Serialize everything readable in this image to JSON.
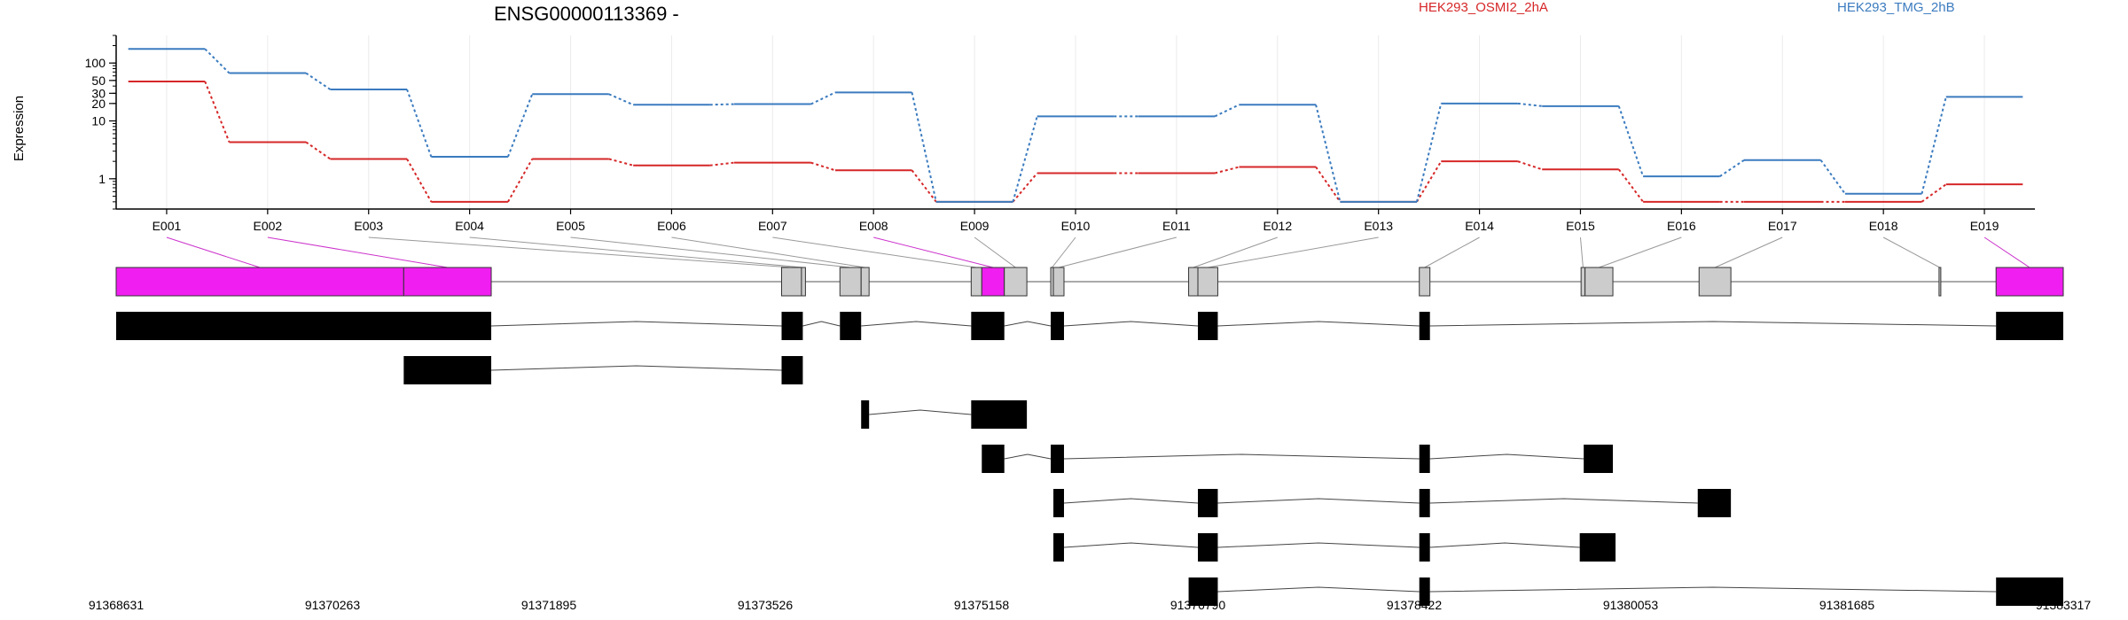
{
  "chart_data": {
    "type": "line",
    "title": "ENSG00000113369 -",
    "ylabel": "Expression",
    "yscale": "log",
    "ylim": [
      0.3,
      300
    ],
    "yticks": [
      1,
      10,
      20,
      30,
      50,
      100
    ],
    "categories": [
      "E001",
      "E002",
      "E003",
      "E004",
      "E005",
      "E006",
      "E007",
      "E008",
      "E009",
      "E010",
      "E011",
      "E012",
      "E013",
      "E014",
      "E015",
      "E016",
      "E017",
      "E018",
      "E019"
    ],
    "series": [
      {
        "name": "HEK293_OSMI2_2hA",
        "color": "#d62728",
        "values": [
          48,
          4.3,
          2.2,
          0.4,
          2.2,
          1.7,
          1.9,
          1.4,
          0.4,
          1.25,
          1.25,
          1.6,
          0.4,
          2.0,
          1.45,
          0.4,
          0.4,
          0.4,
          0.8
        ]
      },
      {
        "name": "HEK293_TMG_2hB",
        "color": "#3b7bbf",
        "values": [
          175,
          67,
          35,
          2.4,
          29,
          19,
          19.5,
          31,
          0.4,
          12,
          12,
          19,
          0.4,
          20,
          18,
          1.1,
          2.1,
          0.55,
          26
        ]
      }
    ],
    "genome_coords": [
      "91368631",
      "91370263",
      "91371895",
      "91373526",
      "91375158",
      "91376790",
      "91378422",
      "91380053",
      "91381685",
      "91383317"
    ],
    "genome_range": [
      91368631,
      91383317
    ],
    "exon_bins": [
      {
        "id": "E001",
        "start": 91368631,
        "end": 91370800,
        "highlight": true
      },
      {
        "id": "E002",
        "start": 91370800,
        "end": 91371460,
        "highlight": true
      },
      {
        "id": "E003",
        "start": 91373650,
        "end": 91373800,
        "highlight": false
      },
      {
        "id": "E004",
        "start": 91373800,
        "end": 91373830,
        "highlight": false
      },
      {
        "id": "E005",
        "start": 91374090,
        "end": 91374250,
        "highlight": false
      },
      {
        "id": "E006",
        "start": 91374250,
        "end": 91374310,
        "highlight": false
      },
      {
        "id": "E007",
        "start": 91375080,
        "end": 91375160,
        "highlight": false
      },
      {
        "id": "E008",
        "start": 91375160,
        "end": 91375330,
        "highlight": true
      },
      {
        "id": "E009",
        "start": 91375330,
        "end": 91375500,
        "highlight": false
      },
      {
        "id": "E010",
        "start": 91375680,
        "end": 91375700,
        "highlight": false
      },
      {
        "id": "E011",
        "start": 91375700,
        "end": 91375780,
        "highlight": false
      },
      {
        "id": "E012",
        "start": 91376720,
        "end": 91376790,
        "highlight": false
      },
      {
        "id": "E013",
        "start": 91376790,
        "end": 91376940,
        "highlight": false
      },
      {
        "id": "E014",
        "start": 91378460,
        "end": 91378540,
        "highlight": false
      },
      {
        "id": "E015",
        "start": 91379680,
        "end": 91379710,
        "highlight": false
      },
      {
        "id": "E016",
        "start": 91379710,
        "end": 91379920,
        "highlight": false
      },
      {
        "id": "E017",
        "start": 91380570,
        "end": 91380810,
        "highlight": false
      },
      {
        "id": "E018",
        "start": 91382380,
        "end": 91382390,
        "highlight": false
      },
      {
        "id": "E019",
        "start": 91382810,
        "end": 91383317,
        "highlight": true
      }
    ],
    "transcripts": [
      {
        "exons": [
          [
            91368631,
            91371460
          ],
          [
            91373650,
            91373810
          ],
          [
            91374090,
            91374250
          ],
          [
            91375080,
            91375330
          ],
          [
            91375680,
            91375780
          ],
          [
            91376790,
            91376940
          ],
          [
            91378460,
            91378540
          ],
          [
            91382810,
            91383317
          ]
        ]
      },
      {
        "exons": [
          [
            91370800,
            91371460
          ],
          [
            91373650,
            91373810
          ]
        ]
      },
      {
        "exons": [
          [
            91374250,
            91374310
          ],
          [
            91375080,
            91375500
          ]
        ]
      },
      {
        "exons": [
          [
            91375160,
            91375330
          ],
          [
            91375680,
            91375780
          ],
          [
            91378460,
            91378540
          ],
          [
            91379700,
            91379920
          ]
        ]
      },
      {
        "exons": [
          [
            91375700,
            91375780
          ],
          [
            91376790,
            91376940
          ],
          [
            91378460,
            91378540
          ],
          [
            91380560,
            91380810
          ]
        ]
      },
      {
        "exons": [
          [
            91375700,
            91375780
          ],
          [
            91376790,
            91376940
          ],
          [
            91378460,
            91378540
          ],
          [
            91379670,
            91379940
          ]
        ]
      },
      {
        "exons": [
          [
            91376720,
            91376940
          ],
          [
            91378460,
            91378540
          ],
          [
            91382810,
            91383317
          ]
        ]
      }
    ]
  }
}
